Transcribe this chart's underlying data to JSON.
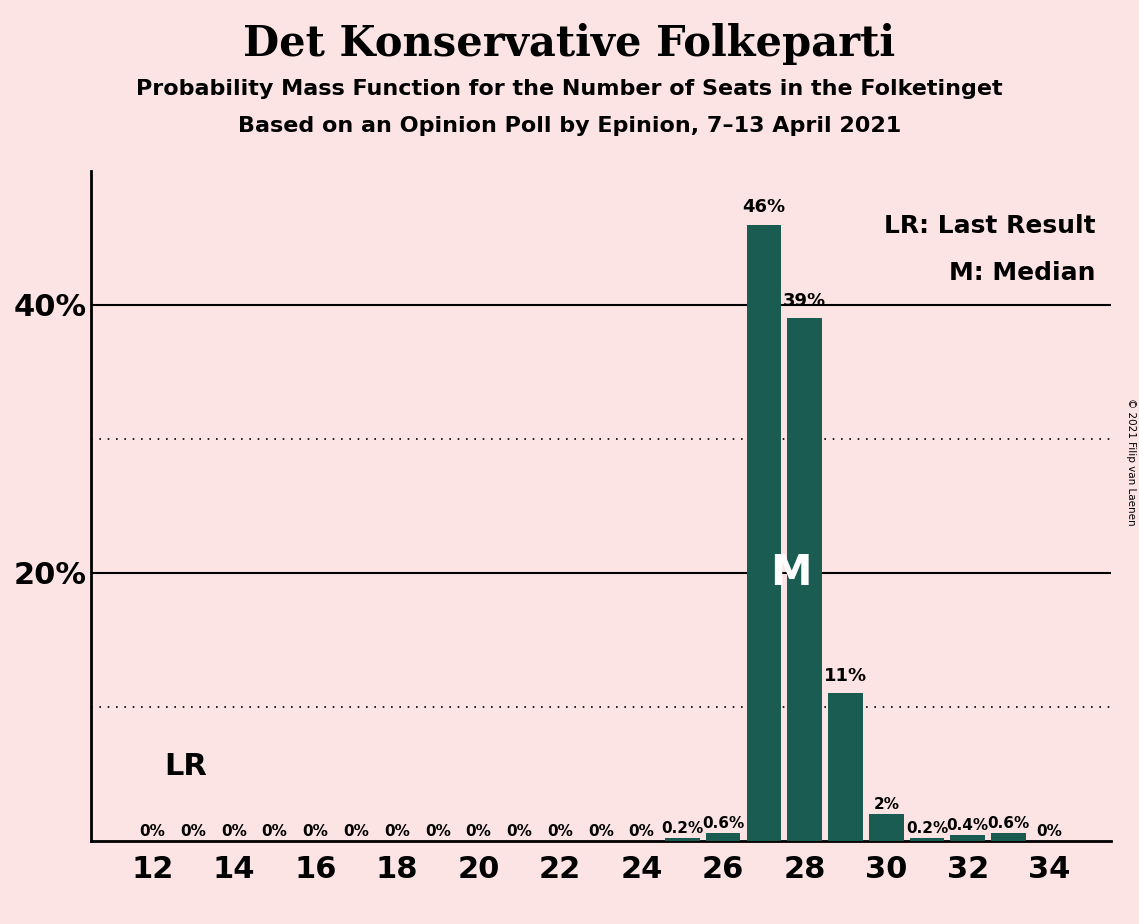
{
  "title": "Det Konservative Folkeparti",
  "subtitle1": "Probability Mass Function for the Number of Seats in the Folketinget",
  "subtitle2": "Based on an Opinion Poll by Epinion, 7–13 April 2021",
  "copyright": "© 2021 Filip van Laenen",
  "background_color": "#fce4e4",
  "bar_color": "#1a5c52",
  "seats": [
    12,
    13,
    14,
    15,
    16,
    17,
    18,
    19,
    20,
    21,
    22,
    23,
    24,
    25,
    26,
    27,
    28,
    29,
    30,
    31,
    32,
    33,
    34
  ],
  "probabilities": [
    0,
    0,
    0,
    0,
    0,
    0,
    0,
    0,
    0,
    0,
    0,
    0,
    0,
    0.2,
    0.6,
    46,
    39,
    11,
    2,
    0.2,
    0.4,
    0.6,
    0
  ],
  "bar_labels": [
    "0%",
    "0%",
    "0%",
    "0%",
    "0%",
    "0%",
    "0%",
    "0%",
    "0%",
    "0%",
    "0%",
    "0%",
    "0%",
    "0.2%",
    "0.6%",
    "46%",
    "39%",
    "11%",
    "2%",
    "0.2%",
    "0.4%",
    "0.6%",
    "0%"
  ],
  "last_result_seat": 12,
  "median_seat": 27,
  "xlabel_seats": [
    12,
    14,
    16,
    18,
    20,
    22,
    24,
    26,
    28,
    30,
    32,
    34
  ],
  "ymin": 0,
  "ymax": 50,
  "solid_grid": [
    20,
    40
  ],
  "dotted_grid": [
    10,
    30
  ],
  "legend_lr": "LR: Last Result",
  "legend_m": "M: Median",
  "lr_label": "LR",
  "m_label": "M"
}
